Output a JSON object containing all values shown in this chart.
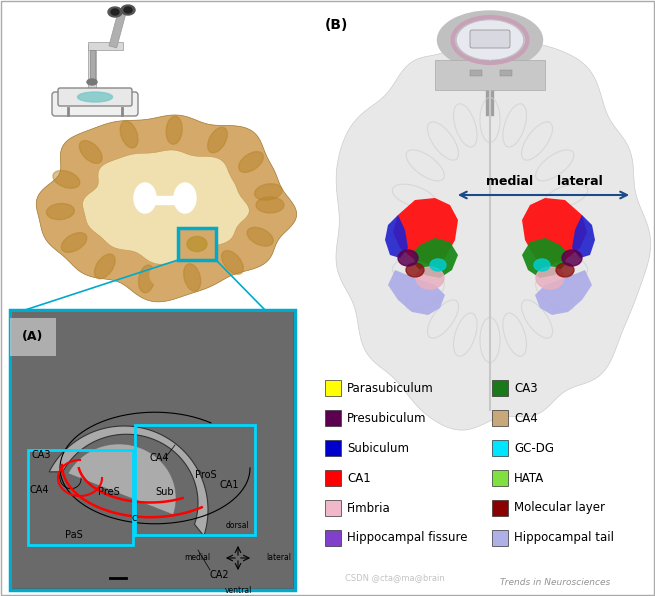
{
  "title_b": "(B)",
  "title_a": "(A)",
  "medial_label": "medial",
  "lateral_label": "lateral",
  "watermark": "CSDN @cta@ma@brain",
  "journal": "Trends in Neurosciences",
  "legend_left": [
    {
      "color": "#ffff00",
      "label": "Parasubiculum"
    },
    {
      "color": "#5c0050",
      "label": "Presubiculum"
    },
    {
      "color": "#0000cc",
      "label": "Subiculum"
    },
    {
      "color": "#ff0000",
      "label": "CA1"
    },
    {
      "color": "#f0b8c8",
      "label": "Fimbria"
    },
    {
      "color": "#8040cc",
      "label": "Hippocampal fissure"
    }
  ],
  "legend_right": [
    {
      "color": "#1a7a1a",
      "label": "CA3"
    },
    {
      "color": "#c8a87a",
      "label": "CA4"
    },
    {
      "color": "#00e5ff",
      "label": "GC-DG"
    },
    {
      "color": "#80e040",
      "label": "HATA"
    },
    {
      "color": "#8b0000",
      "label": "Molecular layer"
    },
    {
      "color": "#b0b0e8",
      "label": "Hippocampal tail"
    }
  ],
  "bg_color": "#ffffff",
  "border_color": "#aaaaaa",
  "arrow_color": "#1a4a8a",
  "fig_width": 6.55,
  "fig_height": 5.96,
  "dpi": 100
}
